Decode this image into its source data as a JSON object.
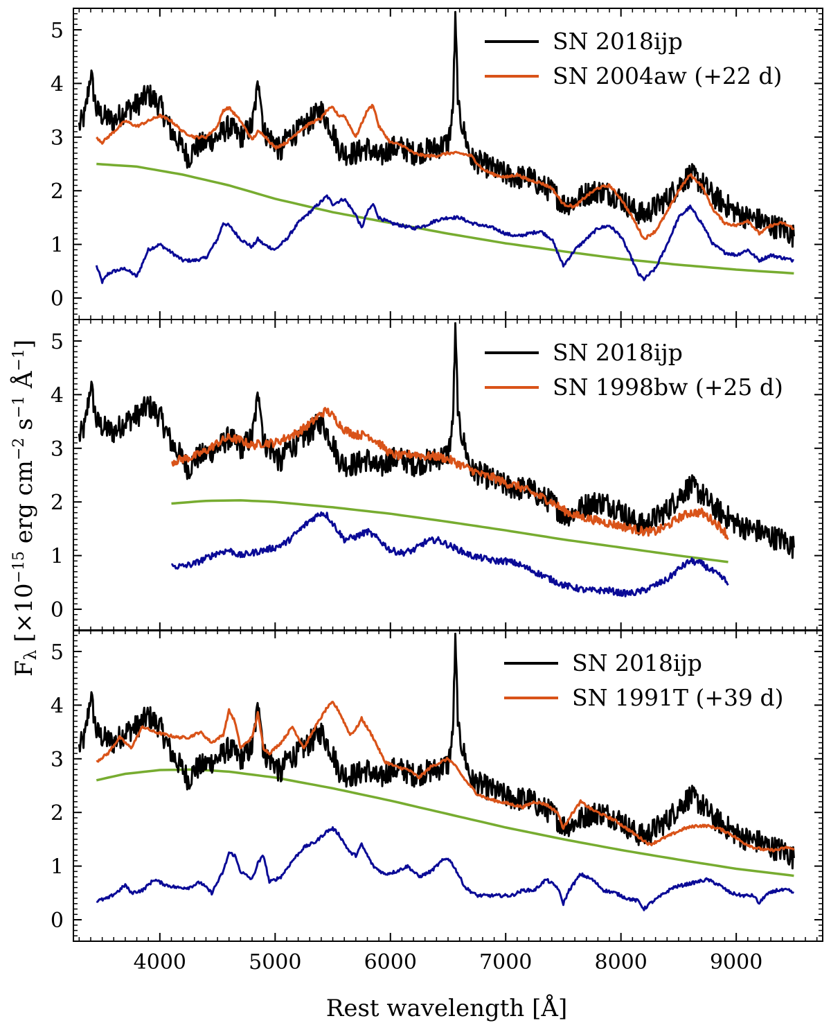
{
  "chart_data": {
    "type": "line",
    "xlabel": "Rest wavelength [Å]",
    "ylabel": {
      "prefix": "F",
      "sub": "λ",
      "units": " [×10",
      "exp": "−15",
      "units2": " erg cm",
      "exp2": "−2",
      "units3": " s",
      "exp3": "−1",
      "units4": " Å",
      "exp4": "−1",
      "close": "]"
    },
    "xlim": [
      3250,
      9750
    ],
    "ylim": [
      -0.4,
      5.4
    ],
    "xticks": [
      4000,
      5000,
      6000,
      7000,
      8000,
      9000
    ],
    "xtick_labels": [
      "4000",
      "5000",
      "6000",
      "7000",
      "8000",
      "9000"
    ],
    "yticks": [
      0,
      1,
      2,
      3,
      4,
      5
    ],
    "ytick_labels": [
      "0",
      "1",
      "2",
      "3",
      "4",
      "5"
    ],
    "colors": {
      "target": "#000000",
      "comparison": "#d95319",
      "continuum": "#77ac30",
      "residual": "#0a0a96"
    },
    "target_line": {
      "name": "SN 2018ijp",
      "x": [
        3300,
        3350,
        3400,
        3450,
        3500,
        3600,
        3700,
        3800,
        3900,
        4000,
        4100,
        4200,
        4250,
        4300,
        4400,
        4500,
        4600,
        4700,
        4800,
        4860,
        4900,
        5000,
        5050,
        5100,
        5200,
        5300,
        5400,
        5450,
        5500,
        5550,
        5600,
        5700,
        5800,
        5900,
        6000,
        6100,
        6200,
        6300,
        6400,
        6500,
        6540,
        6563,
        6590,
        6650,
        6700,
        6800,
        6900,
        7000,
        7100,
        7200,
        7300,
        7400,
        7500,
        7600,
        7700,
        7800,
        7900,
        8000,
        8100,
        8200,
        8300,
        8400,
        8500,
        8600,
        8700,
        8800,
        8900,
        9000,
        9100,
        9200,
        9300,
        9400,
        9500
      ],
      "y": [
        3.2,
        3.4,
        4.2,
        3.5,
        3.4,
        3.3,
        3.5,
        3.6,
        3.8,
        3.6,
        3.1,
        2.8,
        2.6,
        2.8,
        2.9,
        3.0,
        3.2,
        3.0,
        3.2,
        4.1,
        3.1,
        2.9,
        2.7,
        3.0,
        3.1,
        3.3,
        3.5,
        3.3,
        3.1,
        2.8,
        2.7,
        2.7,
        2.8,
        2.6,
        2.8,
        2.8,
        2.7,
        2.75,
        2.8,
        2.9,
        3.4,
        5.15,
        3.5,
        3.0,
        2.6,
        2.5,
        2.4,
        2.3,
        2.25,
        2.25,
        2.1,
        2.0,
        1.75,
        1.8,
        1.95,
        2.0,
        1.95,
        1.85,
        1.65,
        1.55,
        1.7,
        1.85,
        2.1,
        2.3,
        2.15,
        1.9,
        1.75,
        1.6,
        1.5,
        1.45,
        1.35,
        1.3,
        1.15
      ]
    },
    "panels": [
      {
        "legend": [
          "SN 2018ijp",
          "SN 2004aw (+22 d)"
        ],
        "comparison": {
          "x": [
            3450,
            3500,
            3600,
            3700,
            3800,
            3900,
            4000,
            4100,
            4200,
            4300,
            4400,
            4500,
            4550,
            4600,
            4700,
            4800,
            4850,
            4900,
            5000,
            5100,
            5200,
            5300,
            5400,
            5450,
            5500,
            5550,
            5600,
            5700,
            5800,
            5850,
            5900,
            6000,
            6100,
            6200,
            6300,
            6400,
            6500,
            6600,
            6700,
            6800,
            6900,
            7000,
            7100,
            7200,
            7300,
            7400,
            7500,
            7600,
            7700,
            7800,
            7900,
            8000,
            8100,
            8200,
            8300,
            8400,
            8500,
            8600,
            8700,
            8800,
            8900,
            9000,
            9100,
            9200,
            9300,
            9400,
            9500
          ],
          "y": [
            3.0,
            2.9,
            3.1,
            3.3,
            3.2,
            3.3,
            3.4,
            3.3,
            3.1,
            3.0,
            3.0,
            3.2,
            3.5,
            3.55,
            3.3,
            2.95,
            3.1,
            3.05,
            2.8,
            2.9,
            3.1,
            3.25,
            3.35,
            3.5,
            3.55,
            3.4,
            3.4,
            3.0,
            3.5,
            3.6,
            3.2,
            2.9,
            2.85,
            2.7,
            2.65,
            2.65,
            2.7,
            2.7,
            2.65,
            2.4,
            2.3,
            2.25,
            2.3,
            2.2,
            2.15,
            2.05,
            1.75,
            1.7,
            1.9,
            2.05,
            2.1,
            1.85,
            1.5,
            1.1,
            1.25,
            1.6,
            2.0,
            2.3,
            2.1,
            1.65,
            1.4,
            1.35,
            1.45,
            1.2,
            1.35,
            1.4,
            1.3
          ]
        },
        "continuum": {
          "x": [
            3450,
            3800,
            4200,
            4600,
            5000,
            5500,
            6000,
            6500,
            7000,
            7500,
            8000,
            8500,
            9000,
            9500
          ],
          "y": [
            2.5,
            2.45,
            2.3,
            2.1,
            1.85,
            1.6,
            1.4,
            1.2,
            1.02,
            0.87,
            0.73,
            0.62,
            0.53,
            0.46
          ]
        },
        "residual": {
          "x": [
            3450,
            3500,
            3550,
            3600,
            3700,
            3800,
            3900,
            4000,
            4100,
            4200,
            4300,
            4400,
            4500,
            4550,
            4600,
            4700,
            4800,
            4850,
            4900,
            5000,
            5100,
            5200,
            5300,
            5400,
            5450,
            5500,
            5550,
            5600,
            5700,
            5750,
            5800,
            5850,
            5900,
            6000,
            6100,
            6200,
            6300,
            6400,
            6500,
            6600,
            6700,
            6800,
            6900,
            7000,
            7100,
            7200,
            7300,
            7400,
            7500,
            7550,
            7600,
            7700,
            7800,
            7900,
            8000,
            8100,
            8150,
            8200,
            8300,
            8400,
            8500,
            8600,
            8700,
            8800,
            8900,
            9000,
            9100,
            9200,
            9300,
            9400,
            9500
          ],
          "y": [
            0.6,
            0.3,
            0.45,
            0.5,
            0.55,
            0.4,
            0.9,
            1.0,
            0.85,
            0.7,
            0.7,
            0.75,
            1.1,
            1.4,
            1.35,
            1.1,
            0.95,
            1.1,
            1.0,
            0.9,
            1.1,
            1.4,
            1.6,
            1.8,
            1.9,
            1.75,
            1.8,
            1.85,
            1.55,
            1.3,
            1.6,
            1.75,
            1.5,
            1.4,
            1.35,
            1.3,
            1.35,
            1.45,
            1.5,
            1.5,
            1.4,
            1.35,
            1.3,
            1.2,
            1.15,
            1.2,
            1.25,
            1.1,
            0.6,
            0.75,
            0.9,
            1.1,
            1.3,
            1.35,
            1.15,
            0.7,
            0.45,
            0.35,
            0.55,
            1.0,
            1.5,
            1.7,
            1.4,
            1.0,
            0.85,
            0.8,
            0.9,
            0.7,
            0.8,
            0.75,
            0.7
          ]
        }
      },
      {
        "legend": [
          "SN 2018ijp",
          "SN 1998bw (+25 d)"
        ],
        "comparison": {
          "x": [
            4100,
            4200,
            4300,
            4400,
            4500,
            4600,
            4700,
            4800,
            4900,
            5000,
            5100,
            5200,
            5300,
            5400,
            5450,
            5500,
            5600,
            5700,
            5800,
            5900,
            6000,
            6100,
            6200,
            6300,
            6400,
            6500,
            6600,
            6700,
            6800,
            6900,
            7000,
            7100,
            7200,
            7300,
            7400,
            7500,
            7600,
            7700,
            7800,
            7900,
            8000,
            8100,
            8200,
            8300,
            8400,
            8500,
            8600,
            8700,
            8800,
            8900,
            8930
          ],
          "y": [
            2.75,
            2.8,
            2.85,
            2.95,
            3.1,
            3.2,
            3.15,
            3.05,
            3.1,
            3.1,
            3.2,
            3.3,
            3.45,
            3.65,
            3.7,
            3.6,
            3.35,
            3.25,
            3.25,
            3.1,
            2.9,
            2.85,
            2.9,
            2.85,
            2.85,
            2.8,
            2.7,
            2.6,
            2.5,
            2.45,
            2.35,
            2.3,
            2.2,
            2.1,
            2.0,
            1.85,
            1.75,
            1.7,
            1.65,
            1.6,
            1.55,
            1.5,
            1.45,
            1.45,
            1.55,
            1.7,
            1.8,
            1.8,
            1.65,
            1.45,
            1.3
          ]
        },
        "continuum": {
          "x": [
            4100,
            4400,
            4700,
            5000,
            5500,
            6000,
            6500,
            7000,
            7500,
            8000,
            8500,
            8930
          ],
          "y": [
            1.97,
            2.02,
            2.03,
            2.0,
            1.9,
            1.78,
            1.63,
            1.47,
            1.3,
            1.15,
            1.0,
            0.88
          ]
        },
        "residual": {
          "x": [
            4100,
            4200,
            4300,
            4400,
            4500,
            4600,
            4700,
            4800,
            4900,
            5000,
            5100,
            5200,
            5300,
            5400,
            5450,
            5500,
            5600,
            5700,
            5800,
            5900,
            6000,
            6100,
            6200,
            6300,
            6400,
            6500,
            6600,
            6700,
            6800,
            6900,
            7000,
            7100,
            7200,
            7300,
            7400,
            7500,
            7600,
            7700,
            7800,
            7900,
            8000,
            8100,
            8200,
            8300,
            8400,
            8500,
            8600,
            8700,
            8800,
            8900,
            8930
          ],
          "y": [
            0.8,
            0.8,
            0.85,
            0.95,
            1.05,
            1.1,
            1.0,
            1.05,
            1.1,
            1.15,
            1.25,
            1.45,
            1.65,
            1.8,
            1.75,
            1.6,
            1.3,
            1.35,
            1.45,
            1.3,
            1.1,
            1.05,
            1.1,
            1.25,
            1.3,
            1.2,
            1.1,
            1.0,
            0.95,
            0.9,
            0.9,
            0.85,
            0.75,
            0.65,
            0.55,
            0.45,
            0.4,
            0.35,
            0.35,
            0.35,
            0.3,
            0.3,
            0.35,
            0.45,
            0.55,
            0.75,
            0.9,
            0.85,
            0.7,
            0.55,
            0.45
          ]
        }
      },
      {
        "legend": [
          "SN 2018ijp",
          "SN 1991T (+39 d)"
        ],
        "comparison": {
          "x": [
            3450,
            3550,
            3650,
            3750,
            3850,
            3950,
            4050,
            4150,
            4250,
            4350,
            4450,
            4550,
            4600,
            4650,
            4700,
            4800,
            4850,
            4900,
            4950,
            5050,
            5150,
            5250,
            5350,
            5450,
            5500,
            5550,
            5650,
            5700,
            5750,
            5850,
            5950,
            6050,
            6150,
            6250,
            6350,
            6450,
            6500,
            6550,
            6650,
            6750,
            6850,
            6950,
            7050,
            7150,
            7250,
            7350,
            7450,
            7500,
            7550,
            7650,
            7750,
            7850,
            7950,
            8050,
            8150,
            8250,
            8350,
            8450,
            8550,
            8650,
            8750,
            8850,
            8950,
            9050,
            9150,
            9250,
            9350,
            9450,
            9500
          ],
          "y": [
            2.95,
            3.1,
            3.4,
            3.2,
            3.6,
            3.5,
            3.45,
            3.4,
            3.4,
            3.5,
            3.3,
            3.45,
            3.9,
            3.7,
            3.2,
            3.4,
            3.85,
            3.2,
            3.1,
            3.3,
            3.6,
            3.2,
            3.6,
            3.95,
            4.05,
            3.9,
            3.45,
            3.55,
            3.75,
            3.4,
            2.95,
            2.85,
            2.8,
            2.65,
            2.85,
            2.95,
            3.0,
            2.9,
            2.6,
            2.35,
            2.25,
            2.2,
            2.15,
            2.1,
            2.2,
            2.15,
            2.0,
            1.7,
            1.9,
            2.2,
            2.05,
            1.95,
            1.85,
            1.7,
            1.55,
            1.4,
            1.5,
            1.6,
            1.7,
            1.75,
            1.75,
            1.7,
            1.6,
            1.45,
            1.35,
            1.3,
            1.3,
            1.35,
            1.3
          ]
        },
        "continuum": {
          "x": [
            3450,
            3700,
            4000,
            4300,
            4600,
            5000,
            5500,
            6000,
            6500,
            7000,
            7500,
            8000,
            8500,
            9000,
            9500
          ],
          "y": [
            2.6,
            2.72,
            2.79,
            2.8,
            2.76,
            2.65,
            2.45,
            2.22,
            1.97,
            1.72,
            1.5,
            1.3,
            1.12,
            0.95,
            0.82
          ]
        },
        "residual": {
          "x": [
            3450,
            3550,
            3650,
            3700,
            3750,
            3850,
            3950,
            4050,
            4150,
            4250,
            4350,
            4450,
            4550,
            4600,
            4650,
            4700,
            4800,
            4850,
            4900,
            4950,
            5050,
            5150,
            5250,
            5350,
            5450,
            5500,
            5550,
            5650,
            5700,
            5750,
            5850,
            5950,
            6050,
            6150,
            6250,
            6350,
            6450,
            6500,
            6550,
            6650,
            6750,
            6850,
            6950,
            7050,
            7150,
            7250,
            7350,
            7450,
            7500,
            7550,
            7650,
            7750,
            7850,
            7950,
            8050,
            8150,
            8200,
            8250,
            8350,
            8450,
            8550,
            8650,
            8750,
            8850,
            8950,
            9050,
            9150,
            9200,
            9250,
            9350,
            9450,
            9500
          ],
          "y": [
            0.35,
            0.4,
            0.55,
            0.65,
            0.5,
            0.55,
            0.75,
            0.65,
            0.6,
            0.6,
            0.7,
            0.5,
            0.9,
            1.25,
            1.2,
            0.9,
            0.75,
            1.05,
            1.2,
            0.7,
            0.8,
            1.1,
            1.35,
            1.45,
            1.65,
            1.7,
            1.6,
            1.25,
            1.2,
            1.4,
            1.0,
            0.85,
            0.9,
            1.0,
            0.8,
            0.9,
            1.1,
            1.15,
            1.0,
            0.6,
            0.45,
            0.45,
            0.45,
            0.45,
            0.55,
            0.55,
            0.75,
            0.6,
            0.3,
            0.55,
            0.85,
            0.75,
            0.55,
            0.5,
            0.4,
            0.35,
            0.2,
            0.3,
            0.45,
            0.6,
            0.65,
            0.7,
            0.75,
            0.65,
            0.5,
            0.45,
            0.45,
            0.3,
            0.45,
            0.55,
            0.55,
            0.5
          ]
        }
      }
    ]
  }
}
